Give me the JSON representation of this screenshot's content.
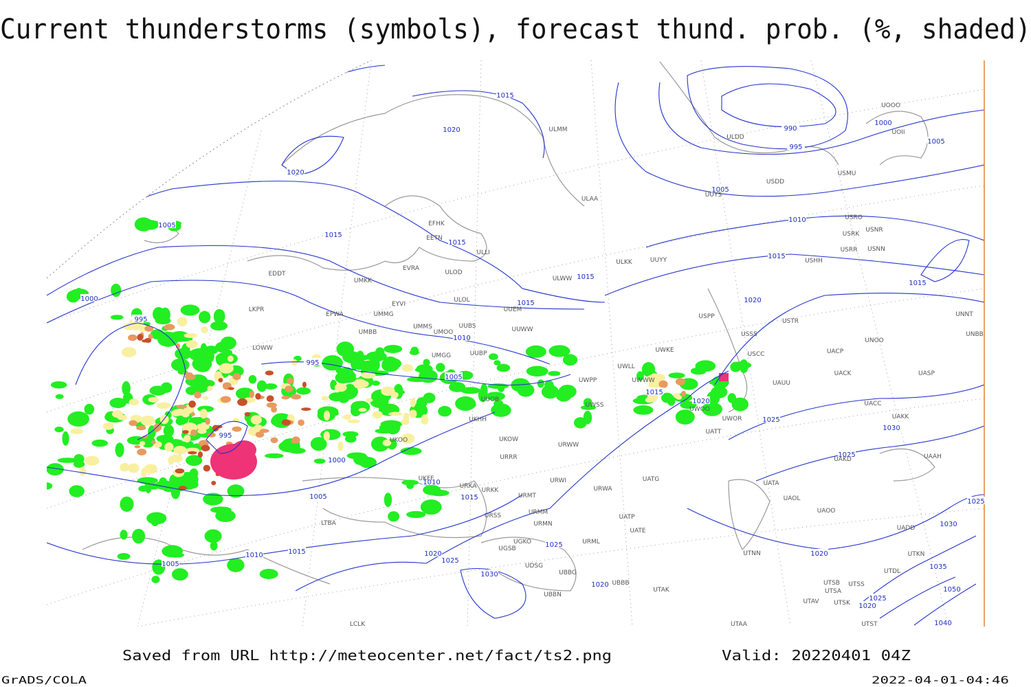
{
  "header": {
    "title": "Current thunderstorms (symbols), forecast thund. prob. (%, shaded)"
  },
  "isobars": [
    "1015",
    "1020",
    "1020",
    "1005",
    "1015",
    "1015",
    "1000",
    "995",
    "1015",
    "1015",
    "1010",
    "995",
    "1005",
    "995",
    "1000",
    "1005",
    "1010",
    "1015",
    "1005",
    "1010",
    "1015",
    "1020",
    "1025",
    "1030",
    "1025",
    "1020",
    "990",
    "995",
    "1000",
    "1005",
    "1005",
    "1010",
    "1015",
    "1015",
    "1020",
    "1015",
    "1020",
    "1025",
    "1030",
    "1025",
    "1020",
    "1025",
    "1030",
    "1035",
    "1050",
    "1040",
    "1020",
    "1025"
  ],
  "stations": [
    "EFHK",
    "EETN",
    "EVRA",
    "ULLI",
    "ULOD",
    "ULOL",
    "UMKK",
    "EYVI",
    "UMMG",
    "EPWA",
    "UMMS",
    "UMOO",
    "UUBS",
    "UUWW",
    "UUEM",
    "ULWW",
    "ULKK",
    "UUYY",
    "ULAA",
    "ULMM",
    "ULDD",
    "UUYS",
    "USDD",
    "USMU",
    "UOOO",
    "UOII",
    "USRO",
    "USRK",
    "USNR",
    "USHH",
    "USRR",
    "USNN",
    "USPP",
    "USSS",
    "USTR",
    "USCC",
    "UNOO",
    "UACP",
    "UACK",
    "UASP",
    "UAUU",
    "UNNT",
    "UNBB",
    "UACC",
    "UAKK",
    "UAKD",
    "UAAH",
    "UATT",
    "UWOR",
    "UWOO",
    "UWKE",
    "UWLL",
    "UWWW",
    "UWPP",
    "UWSS",
    "UUOB",
    "UUBP",
    "UMGG",
    "UMBB",
    "UKHH",
    "UKOW",
    "URRR",
    "UKFF",
    "URKA",
    "URKK",
    "URWI",
    "URMT",
    "URMM",
    "URMN",
    "URSS",
    "UGKO",
    "UGSB",
    "UDSG",
    "UBBG",
    "UBBN",
    "UBBB",
    "URWW",
    "URWA",
    "UATG",
    "UATA",
    "UAOL",
    "UAOO",
    "UATP",
    "UATE",
    "URML",
    "UTAK",
    "UTNN",
    "UTAA",
    "UADD",
    "UTKN",
    "UTDL",
    "UTSS",
    "UTSB",
    "UTSA",
    "UTAV",
    "UTSK",
    "UTST",
    "EDDT",
    "LKPR",
    "LOWW",
    "LTBA",
    "LCLK",
    "UKOO"
  ],
  "footer": {
    "source": "Saved from URL http://meteocenter.net/fact/ts2.png",
    "valid": "Valid: 20220401 04Z",
    "software": "GrADS/COLA",
    "timestamp": "2022-04-01-04:46"
  }
}
